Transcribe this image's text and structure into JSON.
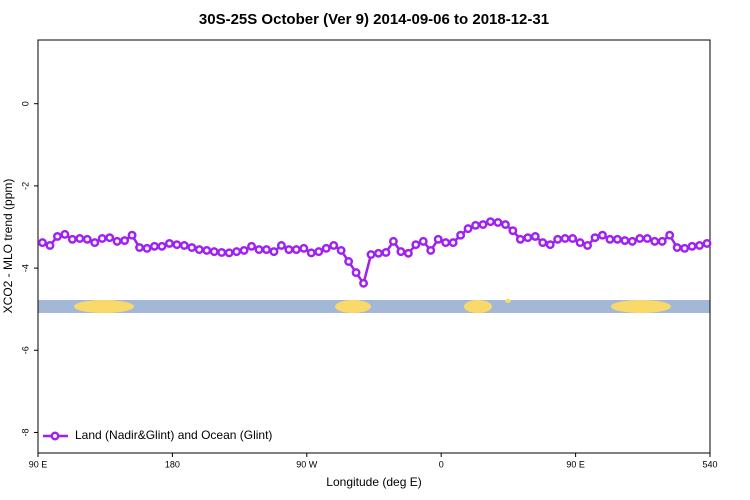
{
  "chart_data": {
    "type": "line",
    "title": "30S-25S October (Ver 9)   2014-09-06 to 2018-12-31",
    "x_label": "Longitude (deg E)",
    "y_label": "XCO2 - MLO trend (ppm)",
    "x": [
      93,
      98,
      103,
      108,
      113,
      118,
      123,
      128,
      133,
      138,
      143,
      148,
      153,
      158,
      163,
      168,
      173,
      178,
      183,
      188,
      193,
      198,
      203,
      208,
      213,
      218,
      223,
      228,
      233,
      238,
      243,
      248,
      253,
      258,
      263,
      268,
      273,
      278,
      283,
      288,
      293,
      298,
      303,
      308,
      313,
      318,
      323,
      328,
      333,
      338,
      343,
      348,
      353,
      358,
      363,
      368,
      373,
      378,
      383,
      388,
      393,
      398,
      403,
      408,
      413,
      418,
      423,
      428,
      433,
      438,
      443,
      448,
      453,
      458,
      463,
      468,
      473,
      478,
      483,
      488,
      493,
      498,
      503,
      508,
      513,
      518,
      523,
      528,
      533,
      538
    ],
    "series": [
      {
        "name": "Land (Nadir&Glint) and Ocean (Glint)",
        "color": "#a020f0",
        "values": [
          -3.38,
          -3.45,
          -3.23,
          -3.18,
          -3.3,
          -3.28,
          -3.3,
          -3.38,
          -3.28,
          -3.26,
          -3.35,
          -3.33,
          -3.2,
          -3.5,
          -3.52,
          -3.47,
          -3.47,
          -3.4,
          -3.43,
          -3.45,
          -3.5,
          -3.55,
          -3.57,
          -3.6,
          -3.62,
          -3.63,
          -3.6,
          -3.57,
          -3.47,
          -3.55,
          -3.55,
          -3.6,
          -3.45,
          -3.55,
          -3.55,
          -3.52,
          -3.63,
          -3.6,
          -3.52,
          -3.45,
          -3.57,
          -3.84,
          -4.11,
          -4.37,
          -3.67,
          -3.64,
          -3.62,
          -3.35,
          -3.6,
          -3.64,
          -3.43,
          -3.35,
          -3.57,
          -3.3,
          -3.38,
          -3.38,
          -3.2,
          -3.04,
          -2.96,
          -2.94,
          -2.87,
          -2.89,
          -2.94,
          -3.09,
          -3.3,
          -3.26,
          -3.23,
          -3.38,
          -3.43,
          -3.3,
          -3.28,
          -3.28,
          -3.38,
          -3.45,
          -3.26,
          -3.2,
          -3.3,
          -3.3,
          -3.33,
          -3.35,
          -3.28,
          -3.28,
          -3.35,
          -3.35,
          -3.2,
          -3.5,
          -3.52,
          -3.47,
          -3.45,
          -3.4
        ]
      }
    ],
    "xlim": [
      90,
      540
    ],
    "xticks": [
      {
        "value": 90,
        "label": "90 E"
      },
      180,
      {
        "value": 270,
        "label": "90 W"
      },
      {
        "value": 360,
        "label": "0"
      },
      {
        "value": 450,
        "label": "90 E"
      },
      540
    ],
    "ylim": [
      -8.5,
      1.55
    ],
    "yticks": [
      0,
      -2,
      -4,
      -6,
      -8
    ],
    "legend": "bottom-left"
  }
}
